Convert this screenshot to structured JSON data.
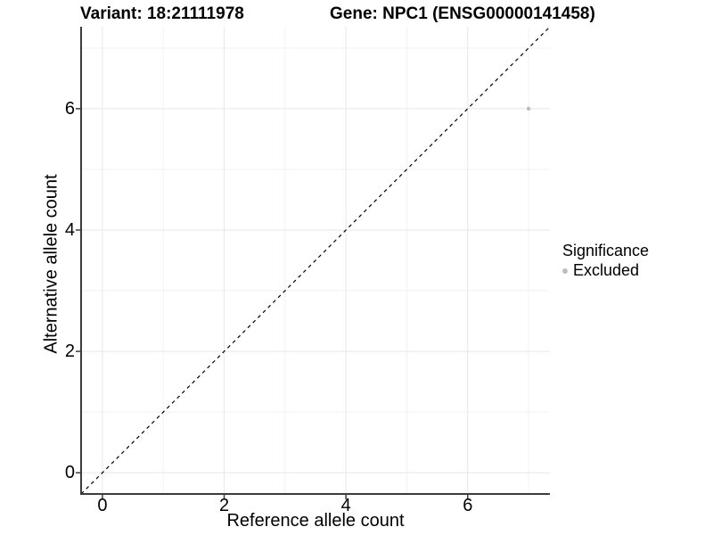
{
  "header": {
    "title_left": "Variant: 18:21111978",
    "title_right": "Gene: NPC1 (ENSG00000141458)"
  },
  "chart_data": {
    "type": "scatter",
    "xlabel": "Reference allele count",
    "ylabel": "Alternative allele count",
    "xlim": [
      -0.35,
      7.35
    ],
    "ylim": [
      -0.35,
      7.35
    ],
    "x_major_ticks": [
      0,
      2,
      4,
      6
    ],
    "y_major_ticks": [
      0,
      2,
      4,
      6
    ],
    "x_minor_gridlines": [
      1,
      3,
      5,
      7
    ],
    "y_minor_gridlines": [
      1,
      3,
      5,
      7
    ],
    "grid": true,
    "identity_line": {
      "style": "dashed",
      "color": "#000000",
      "from": [
        -0.35,
        -0.35
      ],
      "to": [
        7.35,
        7.35
      ]
    },
    "series": [
      {
        "name": "Excluded",
        "color": "#bdbdbd",
        "size": 2.2,
        "points": [
          [
            7,
            6
          ]
        ]
      }
    ],
    "legend": {
      "position": "right",
      "title": "Significance",
      "entries": [
        {
          "label": "Excluded",
          "color": "#bdbdbd"
        }
      ]
    },
    "colors": {
      "axis_line": "#3c3c3c",
      "tick": "#3c3c3c",
      "grid_major": "#e7e7e7",
      "grid_minor": "#f2f2f2",
      "background": "#ffffff"
    }
  }
}
